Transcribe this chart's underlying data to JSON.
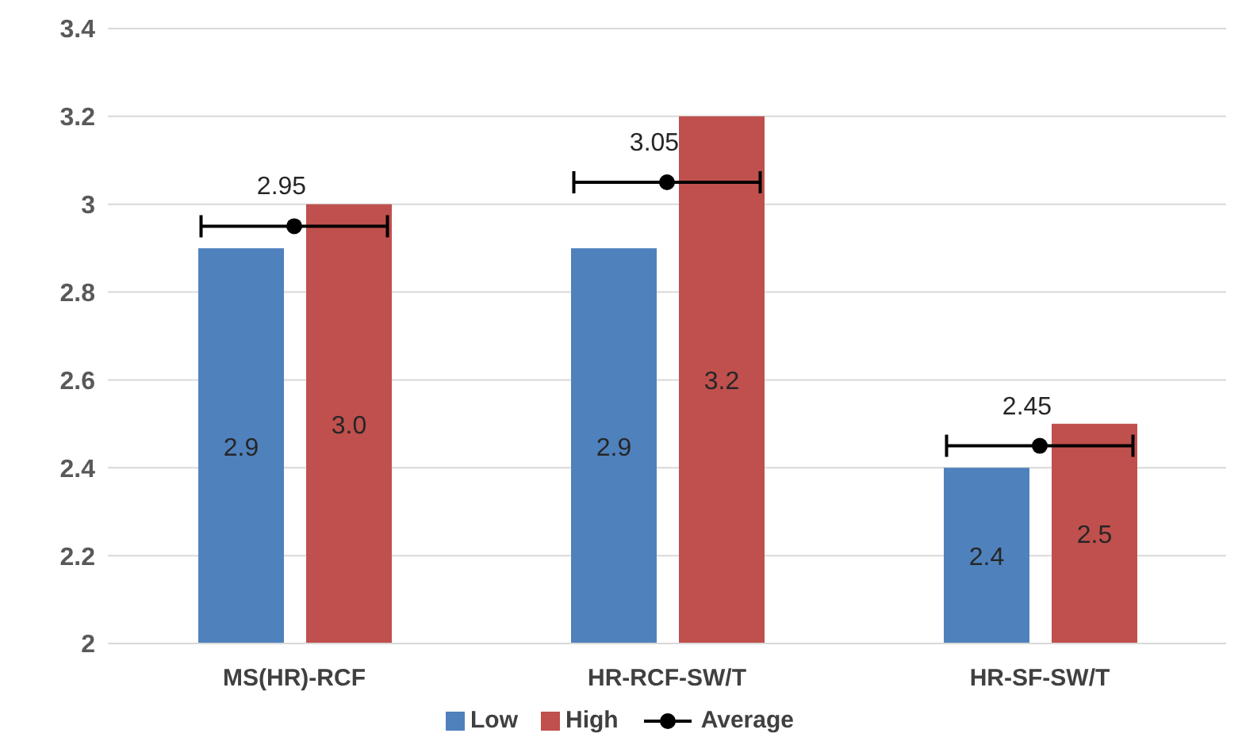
{
  "chart_data": {
    "type": "bar",
    "categories": [
      "MS(HR)-RCF",
      "HR-RCF-SW/T",
      "HR-SF-SW/T"
    ],
    "series": [
      {
        "name": "Low",
        "color": "#4f81bd",
        "values": [
          2.9,
          2.9,
          2.4
        ],
        "value_labels": [
          "2.9",
          "2.9",
          "2.4"
        ]
      },
      {
        "name": "High",
        "color": "#c0504d",
        "values": [
          3.0,
          3.2,
          2.5
        ],
        "value_labels": [
          "3.0",
          "3.2",
          "2.5"
        ]
      },
      {
        "name": "Average",
        "type": "scatter",
        "color": "#000000",
        "marker": "circle",
        "values": [
          2.95,
          3.05,
          2.45
        ],
        "value_labels": [
          "2.95",
          "3.05",
          "2.45"
        ]
      }
    ],
    "ylim": [
      2,
      3.4
    ],
    "yticks": [
      2,
      2.2,
      2.4,
      2.6,
      2.8,
      3,
      3.2,
      3.4
    ],
    "grid": "y",
    "legend": "bottom"
  }
}
